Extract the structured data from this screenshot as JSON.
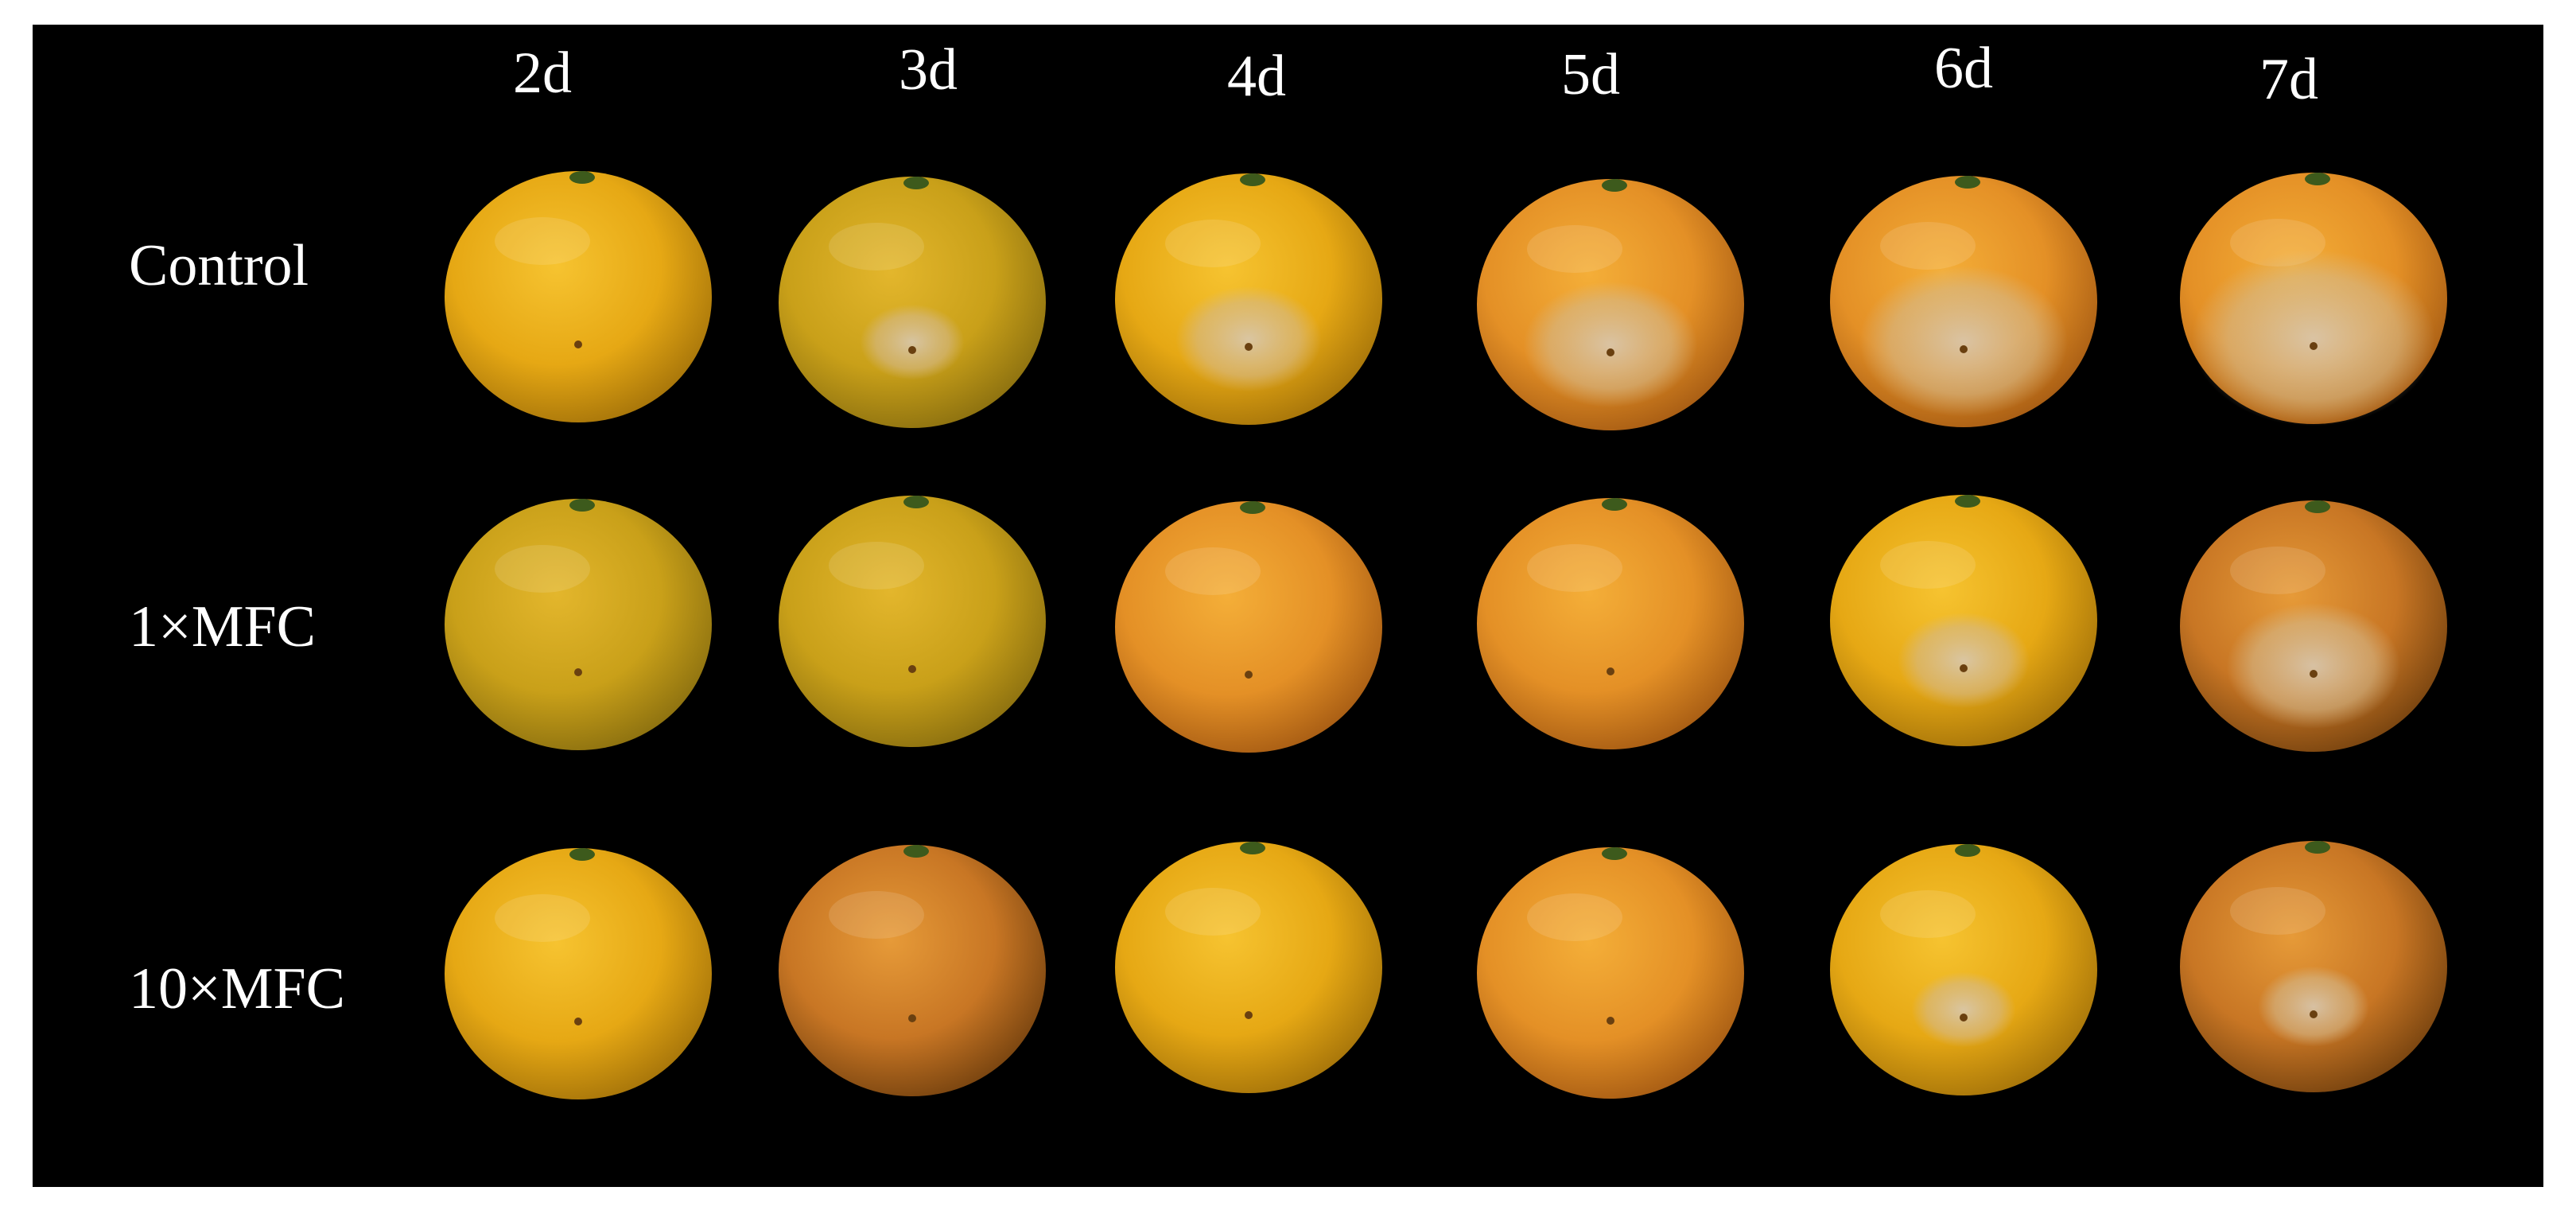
{
  "columns": [
    "2d",
    "3d",
    "4d",
    "5d",
    "6d",
    "7d"
  ],
  "rows": [
    "Control",
    "1×MFC",
    "10×MFC"
  ]
}
